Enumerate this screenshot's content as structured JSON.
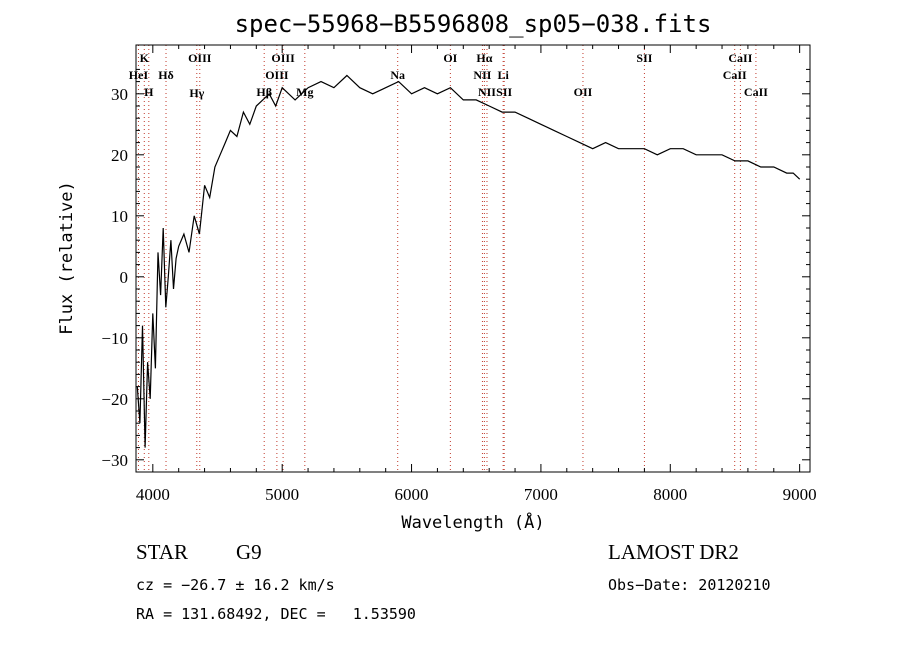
{
  "chart_data": {
    "type": "line",
    "title": "spec−55968−B5596808_sp05−038.fits",
    "xlabel": "Wavelength (Å)",
    "ylabel": "Flux (relative)",
    "xlim": [
      3870,
      9080
    ],
    "ylim": [
      -32,
      38
    ],
    "xticks": [
      4000,
      5000,
      6000,
      7000,
      8000,
      9000
    ],
    "yticks": [
      -30,
      -20,
      -10,
      0,
      10,
      20,
      30
    ],
    "grid": false,
    "series": [
      {
        "x": [
          3880,
          3900,
          3920,
          3940,
          3960,
          3980,
          4000,
          4020,
          4040,
          4060,
          4080,
          4100,
          4120,
          4140,
          4160,
          4180,
          4200,
          4240,
          4280,
          4320,
          4360,
          4400,
          4440,
          4480,
          4520,
          4560,
          4600,
          4650,
          4700,
          4750,
          4800,
          4850,
          4900,
          4950,
          5000,
          5100,
          5200,
          5300,
          5400,
          5500,
          5600,
          5700,
          5800,
          5900,
          6000,
          6100,
          6200,
          6300,
          6400,
          6500,
          6600,
          6700,
          6800,
          6900,
          7000,
          7100,
          7200,
          7300,
          7400,
          7500,
          7600,
          7700,
          7800,
          7900,
          8000,
          8100,
          8200,
          8300,
          8400,
          8500,
          8600,
          8700,
          8800,
          8900,
          8950,
          9000
        ],
        "y": [
          -18,
          -24,
          -8,
          -28,
          -14,
          -20,
          -6,
          -15,
          4,
          -3,
          8,
          -5,
          0,
          6,
          -2,
          3,
          5,
          7,
          4,
          10,
          7,
          15,
          13,
          18,
          20,
          22,
          24,
          23,
          27,
          25,
          28,
          29,
          30,
          28,
          31,
          29,
          31,
          32,
          31,
          33,
          31,
          30,
          31,
          32,
          30,
          31,
          30,
          31,
          29,
          29,
          28,
          27,
          27,
          26,
          25,
          24,
          23,
          22,
          21,
          22,
          21,
          21,
          21,
          20,
          21,
          21,
          20,
          20,
          20,
          19,
          19,
          18,
          18,
          17,
          17,
          16
        ]
      }
    ],
    "line_markers": [
      {
        "label": "K",
        "x": 3934,
        "row": 1
      },
      {
        "label": "H",
        "x": 3969,
        "row": 3
      },
      {
        "label": "HeI",
        "x": 3889,
        "row": 2
      },
      {
        "label": "Hδ",
        "x": 4102,
        "row": 2
      },
      {
        "label": "OIII",
        "x": 4363,
        "row": 1
      },
      {
        "label": "Hγ",
        "x": 4340,
        "row": 0
      },
      {
        "label": "Hβ",
        "x": 4861,
        "row": 3
      },
      {
        "label": "OIII",
        "x": 4959,
        "row": 2
      },
      {
        "label": "OIII",
        "x": 5007,
        "row": 1
      },
      {
        "label": "Mg",
        "x": 5175,
        "row": 3
      },
      {
        "label": "Na",
        "x": 5893,
        "row": 2
      },
      {
        "label": "OI",
        "x": 6300,
        "row": 1
      },
      {
        "label": "Hα",
        "x": 6563,
        "row": 1
      },
      {
        "label": "NII",
        "x": 6548,
        "row": 2
      },
      {
        "label": "Li",
        "x": 6708,
        "row": 2
      },
      {
        "label": "NII",
        "x": 6583,
        "row": 3
      },
      {
        "label": "SII",
        "x": 6716,
        "row": 3
      },
      {
        "label": "OII",
        "x": 7325,
        "row": 3
      },
      {
        "label": "SII",
        "x": 7800,
        "row": 1
      },
      {
        "label": "CaII",
        "x": 8498,
        "row": 2
      },
      {
        "label": "CaII",
        "x": 8542,
        "row": 1
      },
      {
        "label": "CaII",
        "x": 8662,
        "row": 3
      }
    ]
  },
  "info": {
    "object_class": "STAR",
    "subclass": "G9",
    "survey": "LAMOST DR2",
    "redshift": "cz = −26.7 ± 16.2 km/s",
    "obs_date": "Obs−Date: 20120210",
    "coords": "RA = 131.68492, DEC =   1.53590"
  },
  "colors": {
    "line_marker": "#c0392b",
    "spectrum": "#000000"
  }
}
